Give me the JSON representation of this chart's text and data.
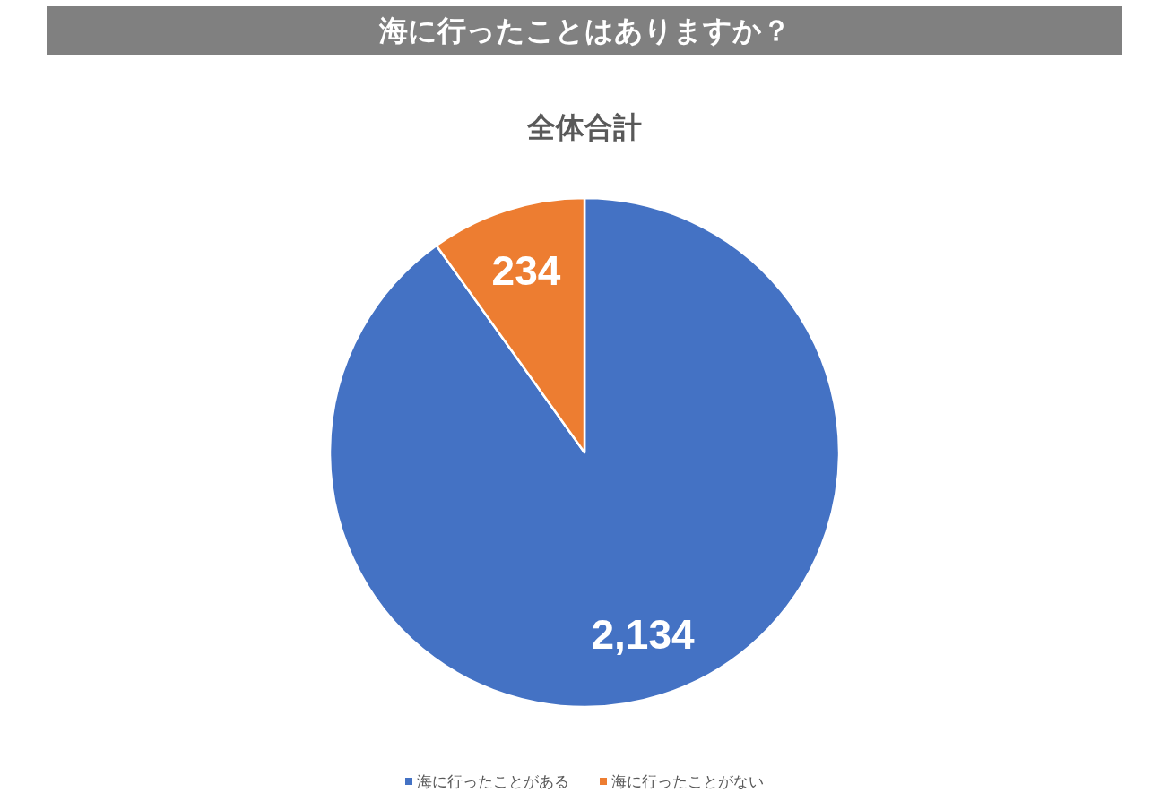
{
  "chart_data": {
    "type": "pie",
    "title": "海に行ったことはありますか？",
    "subtitle": "全体合計",
    "categories": [
      "海に行ったことがある",
      "海に行ったことがない"
    ],
    "values": [
      2134,
      234
    ],
    "colors": [
      "#4472c4",
      "#ed7d31"
    ],
    "value_labels": [
      "2,134",
      "234"
    ],
    "legend": "bottom"
  }
}
